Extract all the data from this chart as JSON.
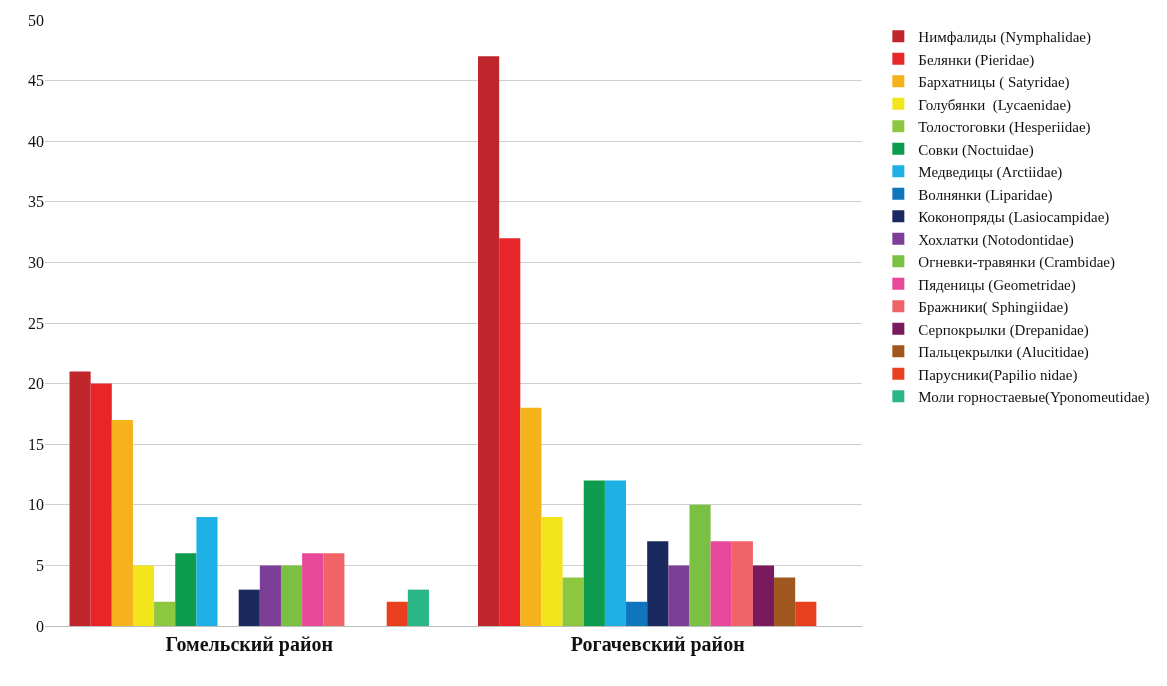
{
  "chart_data": {
    "type": "bar",
    "categories": [
      "Гомельский район",
      "Рогачевский район"
    ],
    "series": [
      {
        "name": "Нимфалиды (Nymphalidae)",
        "color": "#c0272d",
        "values": [
          21,
          47
        ]
      },
      {
        "name": "Белянки (Pieridae)",
        "color": "#e8262a",
        "values": [
          20,
          32
        ]
      },
      {
        "name": "Бархатницы ( Satyridae)",
        "color": "#f5b21b",
        "values": [
          17,
          18
        ]
      },
      {
        "name": "Голубянки  (Lycaenidae)",
        "color": "#f2e51c",
        "values": [
          5,
          9
        ]
      },
      {
        "name": "Толостоговки (Hesperiidae)",
        "color": "#8dc63f",
        "values": [
          2,
          4
        ]
      },
      {
        "name": "Совки (Noctuidae)",
        "color": "#0d9b4d",
        "values": [
          6,
          12
        ]
      },
      {
        "name": "Медведицы (Arctiidae)",
        "color": "#1fb1e6",
        "values": [
          9,
          12
        ]
      },
      {
        "name": "Волнянки (Liparidae)",
        "color": "#0f75bc",
        "values": [
          0,
          2
        ]
      },
      {
        "name": "Коконопряды (Lasiocampidae)",
        "color": "#1b2a5e",
        "values": [
          3,
          7
        ]
      },
      {
        "name": "Хохлатки (Notodontidae)",
        "color": "#7c3f98",
        "values": [
          5,
          5
        ]
      },
      {
        "name": "Огневки-травянки (Crambidae)",
        "color": "#7ac143",
        "values": [
          5,
          10
        ]
      },
      {
        "name": "Пяденицы (Geometridae)",
        "color": "#e8489a",
        "values": [
          6,
          7
        ]
      },
      {
        "name": "Бражники( Sphingiidae)",
        "color": "#f06368",
        "values": [
          6,
          7
        ]
      },
      {
        "name": "Серпокрылки (Drepanidae)",
        "color": "#7a1a5e",
        "values": [
          0,
          5
        ]
      },
      {
        "name": "Пальцекрылки (Alucitidae)",
        "color": "#a0561f",
        "values": [
          0,
          4
        ]
      },
      {
        "name": "Парусники(Papilio nidae)",
        "color": "#e8401f",
        "values": [
          2,
          2
        ]
      },
      {
        "name": "Моли горностаевые(Yponomeutidae)",
        "color": "#2bb686",
        "values": [
          3,
          0
        ]
      }
    ],
    "ylim": [
      0,
      50
    ],
    "yticks": [
      0,
      5,
      10,
      15,
      20,
      25,
      30,
      35,
      40,
      45,
      50
    ],
    "grid": "y",
    "legend": "right"
  }
}
